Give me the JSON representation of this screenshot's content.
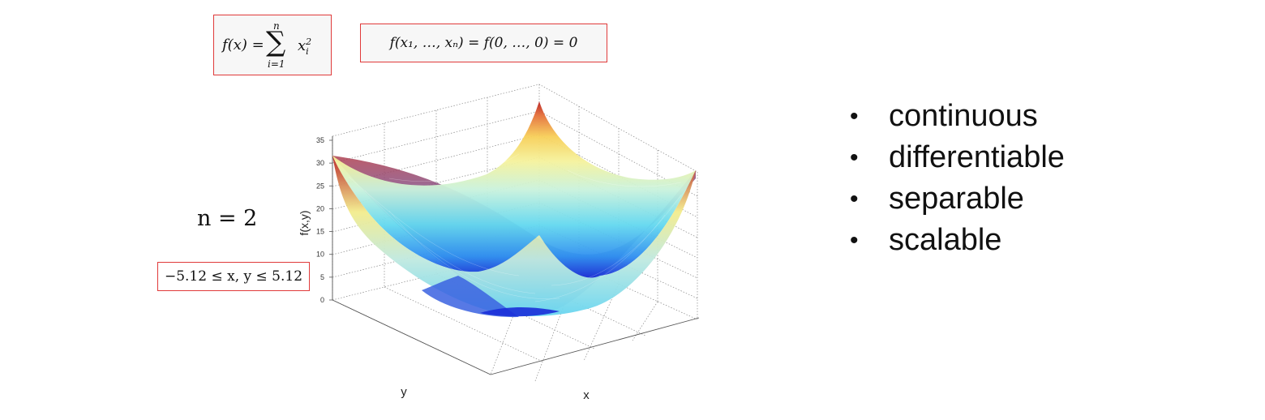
{
  "formulas": {
    "definition_lhs": "f(x) =",
    "definition_sum_upper": "n",
    "definition_sum_lower": "i=1",
    "definition_term": "x",
    "definition_term_sup": "2",
    "definition_term_sub": "i",
    "minimum": "f(x₁, …, xₙ) = f(0, …, 0) = 0",
    "dimension": "n = 2",
    "domain": "−5.12 ≤ x, y ≤ 5.12"
  },
  "plot": {
    "z_axis_label": "f(x,y)",
    "x_axis_label": "x",
    "y_axis_label": "y",
    "z_ticks": [
      "0",
      "5",
      "10",
      "15",
      "20",
      "25",
      "30",
      "35"
    ]
  },
  "properties": [
    "continuous",
    "differentiable",
    "separable",
    "scalable"
  ]
}
